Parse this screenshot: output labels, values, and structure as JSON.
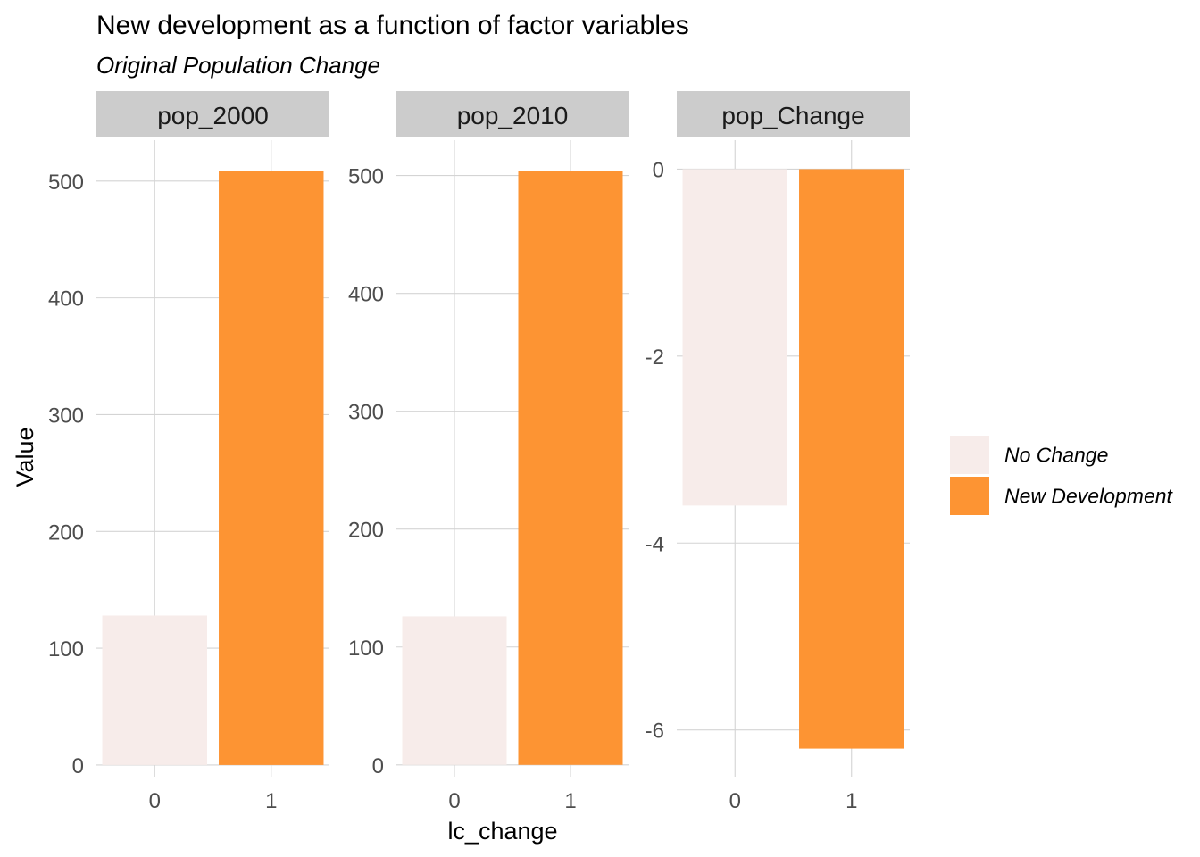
{
  "chart_data": {
    "type": "bar",
    "title": "New development as a function of factor variables",
    "subtitle": "Original Population Change",
    "xlabel": "lc_change",
    "ylabel": "Value",
    "categories": [
      "0",
      "1"
    ],
    "colors": {
      "No Change": "#f7ecea",
      "New Development": "#fd9433"
    },
    "legend": {
      "position": "right",
      "entries": [
        "No Change",
        "New Development"
      ]
    },
    "facets": [
      {
        "name": "pop_2000",
        "values": [
          128,
          509
        ],
        "ylim": [
          -10,
          535
        ],
        "yticks": [
          0,
          100,
          200,
          300,
          400,
          500
        ]
      },
      {
        "name": "pop_2010",
        "values": [
          126,
          504
        ],
        "ylim": [
          -10,
          530
        ],
        "yticks": [
          0,
          100,
          200,
          300,
          400,
          500
        ]
      },
      {
        "name": "pop_Change",
        "values": [
          -3.6,
          -6.2
        ],
        "ylim": [
          -6.5,
          0.31
        ],
        "yticks": [
          0,
          -2,
          -4,
          -6
        ]
      }
    ],
    "grid": true
  }
}
